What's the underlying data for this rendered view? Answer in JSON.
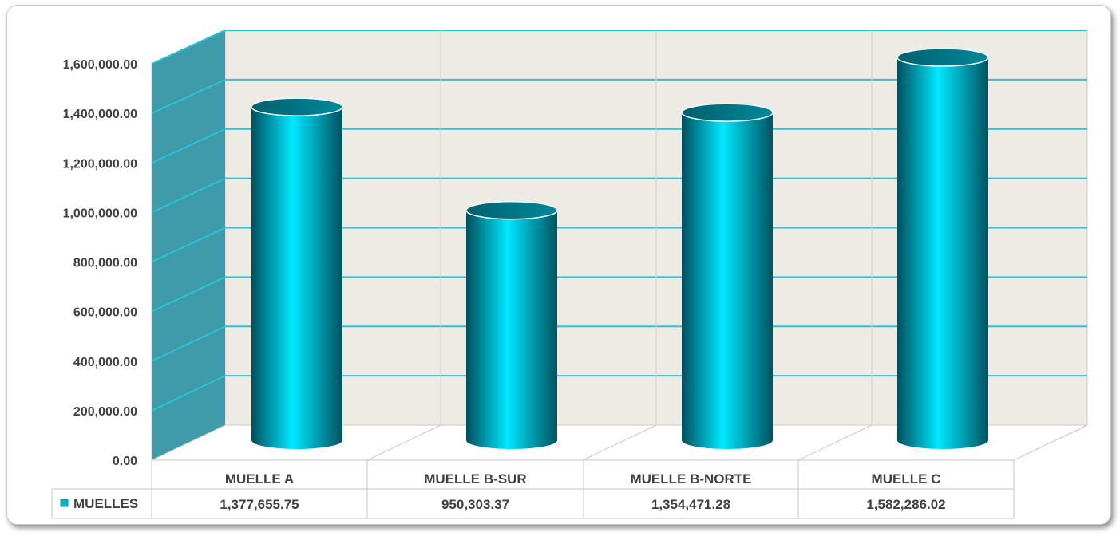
{
  "chart_data": {
    "type": "bar",
    "style": "3d-cylinder",
    "categories": [
      "MUELLE A",
      "MUELLE B-SUR",
      "MUELLE B-NORTE",
      "MUELLE C"
    ],
    "series": [
      {
        "name": "MUELLES",
        "values": [
          1377655.75,
          950303.37,
          1354471.28,
          1582286.02
        ]
      }
    ],
    "value_labels": [
      "1,377,655.75",
      "950,303.37",
      "1,354,471.28",
      "1,582,286.02"
    ],
    "y_ticks": [
      "0.00",
      "200,000.00",
      "400,000.00",
      "600,000.00",
      "800,000.00",
      "1,000,000.00",
      "1,200,000.00",
      "1,400,000.00",
      "1,600,000.00"
    ],
    "ylim": [
      0,
      1600000
    ],
    "grid": true,
    "legend": "data-table-left",
    "colors": {
      "bar": "#00b4cc",
      "bar_dark": "#006f80",
      "bar_light": "#00e6ff",
      "gridline": "#29c3dc",
      "side_wall": "#3f9aaa",
      "back_wall": "#eeeae4"
    }
  }
}
